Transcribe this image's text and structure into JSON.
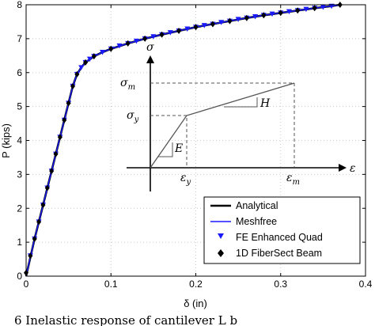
{
  "chart_data": {
    "type": "line",
    "title": "",
    "xlabel": "δ (in)",
    "ylabel": "P (kips)",
    "xlim": [
      0,
      0.4
    ],
    "ylim": [
      0,
      8
    ],
    "xticks": [
      0,
      0.1,
      0.2,
      0.3,
      0.4
    ],
    "xtick_labels": [
      "0",
      "0.1",
      "0.2",
      "0.3",
      "0.4"
    ],
    "yticks": [
      0,
      1,
      2,
      3,
      4,
      5,
      6,
      7,
      8
    ],
    "ytick_labels": [
      "0",
      "1",
      "2",
      "3",
      "4",
      "5",
      "6",
      "7",
      "8"
    ],
    "grid": true,
    "legend_position": "bottom-right",
    "series": [
      {
        "name": "Analytical",
        "color": "#000000",
        "style": "line",
        "x": [
          0,
          0.01,
          0.02,
          0.03,
          0.04,
          0.05,
          0.055,
          0.06,
          0.065,
          0.07,
          0.08,
          0.09,
          0.1,
          0.12,
          0.14,
          0.16,
          0.18,
          0.2,
          0.22,
          0.24,
          0.26,
          0.28,
          0.3,
          0.32,
          0.34,
          0.36,
          0.37
        ],
        "y": [
          0,
          1.1,
          2.1,
          3.1,
          4.1,
          5.1,
          5.6,
          5.95,
          6.15,
          6.3,
          6.48,
          6.6,
          6.7,
          6.86,
          7.0,
          7.12,
          7.23,
          7.34,
          7.43,
          7.52,
          7.61,
          7.69,
          7.76,
          7.83,
          7.9,
          7.96,
          8.0
        ]
      },
      {
        "name": "Meshfree",
        "color": "#1a1aff",
        "style": "line",
        "x": [
          0,
          0.01,
          0.02,
          0.03,
          0.04,
          0.05,
          0.055,
          0.06,
          0.065,
          0.07,
          0.08,
          0.09,
          0.1,
          0.12,
          0.14,
          0.16,
          0.18,
          0.2,
          0.22,
          0.24,
          0.26,
          0.28,
          0.3,
          0.32,
          0.34,
          0.36,
          0.37
        ],
        "y": [
          0,
          1.1,
          2.1,
          3.1,
          4.1,
          5.1,
          5.6,
          5.95,
          6.15,
          6.3,
          6.48,
          6.6,
          6.7,
          6.86,
          7.0,
          7.12,
          7.23,
          7.34,
          7.43,
          7.52,
          7.61,
          7.69,
          7.76,
          7.83,
          7.9,
          7.96,
          8.0
        ]
      },
      {
        "name": "FE Enhanced Quad",
        "color": "#1a1aff",
        "style": "marker-triangle-down",
        "x": [
          0.005,
          0.01,
          0.015,
          0.02,
          0.025,
          0.03,
          0.035,
          0.04,
          0.045,
          0.05,
          0.055,
          0.06,
          0.065,
          0.07,
          0.075,
          0.08,
          0.09,
          0.1,
          0.11,
          0.12,
          0.13,
          0.14,
          0.15,
          0.16,
          0.17,
          0.18,
          0.19,
          0.2,
          0.21,
          0.22,
          0.23,
          0.24,
          0.25,
          0.26,
          0.27,
          0.28,
          0.29,
          0.3,
          0.31,
          0.32,
          0.33,
          0.34,
          0.35,
          0.36
        ],
        "y": [
          0.6,
          1.1,
          1.6,
          2.1,
          2.6,
          3.1,
          3.6,
          4.1,
          4.6,
          5.1,
          5.6,
          5.95,
          6.15,
          6.3,
          6.4,
          6.48,
          6.6,
          6.7,
          6.79,
          6.86,
          6.93,
          7.0,
          7.06,
          7.12,
          7.18,
          7.23,
          7.29,
          7.34,
          7.39,
          7.43,
          7.48,
          7.52,
          7.57,
          7.61,
          7.65,
          7.69,
          7.73,
          7.76,
          7.8,
          7.83,
          7.87,
          7.9,
          7.93,
          7.96
        ]
      },
      {
        "name": "1D FiberSect Beam",
        "color": "#000000",
        "style": "marker-diamond",
        "x": [
          0,
          0.005,
          0.01,
          0.015,
          0.02,
          0.025,
          0.03,
          0.035,
          0.04,
          0.045,
          0.05,
          0.055,
          0.06,
          0.07,
          0.08,
          0.1,
          0.12,
          0.14,
          0.16,
          0.18,
          0.2,
          0.22,
          0.24,
          0.26,
          0.28,
          0.3,
          0.32,
          0.34,
          0.37
        ],
        "y": [
          0.1,
          0.6,
          1.1,
          1.6,
          2.1,
          2.6,
          3.1,
          3.6,
          4.1,
          4.6,
          5.1,
          5.6,
          5.95,
          6.3,
          6.48,
          6.7,
          6.86,
          7.0,
          7.12,
          7.23,
          7.34,
          7.43,
          7.52,
          7.61,
          7.69,
          7.76,
          7.83,
          7.9,
          8.0
        ]
      }
    ],
    "inset": {
      "y_axis_label": "σ",
      "x_axis_label": "ε",
      "sigma_m_label": "σ",
      "sigma_m_sub": "m",
      "sigma_y_label": "σ",
      "sigma_y_sub": "y",
      "eps_y_label": "ε",
      "eps_y_sub": "y",
      "eps_m_label": "ε",
      "eps_m_sub": "m",
      "slope1_label": "E",
      "slope2_label": "H"
    }
  },
  "caption": "6  Inelastic response of cantilever  L b"
}
